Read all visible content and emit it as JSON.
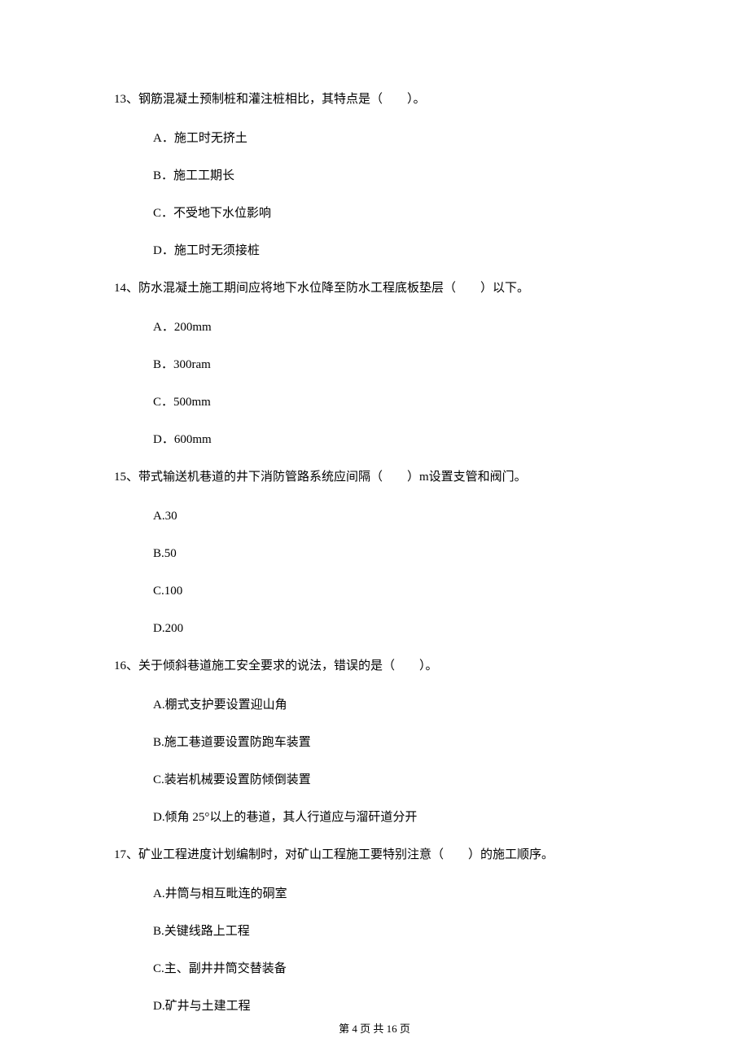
{
  "questions": [
    {
      "number": "13、",
      "text": "钢筋混凝土预制桩和灌注桩相比，其特点是（　　）。",
      "options": [
        "A．施工时无挤土",
        "B．施工工期长",
        "C．不受地下水位影响",
        "D．施工时无须接桩"
      ]
    },
    {
      "number": "14、",
      "text": "防水混凝土施工期间应将地下水位降至防水工程底板垫层（　　）以下。",
      "options": [
        "A．200mm",
        "B．300ram",
        "C．500mm",
        "D．600mm"
      ]
    },
    {
      "number": "15、",
      "text": "带式输送机巷道的井下消防管路系统应间隔（　　）m设置支管和阀门。",
      "options": [
        "A.30",
        "B.50",
        "C.100",
        "D.200"
      ]
    },
    {
      "number": "16、",
      "text": "关于倾斜巷道施工安全要求的说法，错误的是（　　）。",
      "options": [
        "A.棚式支护要设置迎山角",
        "B.施工巷道要设置防跑车装置",
        "C.装岩机械要设置防倾倒装置",
        "D.倾角 25°以上的巷道，其人行道应与溜矸道分开"
      ]
    },
    {
      "number": "17、",
      "text": "矿业工程进度计划编制时，对矿山工程施工要特别注意（　　）的施工顺序。",
      "options": [
        "A.井筒与相互毗连的硐室",
        "B.关键线路上工程",
        "C.主、副井井筒交替装备",
        "D.矿井与土建工程"
      ]
    }
  ],
  "footer": "第 4 页 共 16 页"
}
